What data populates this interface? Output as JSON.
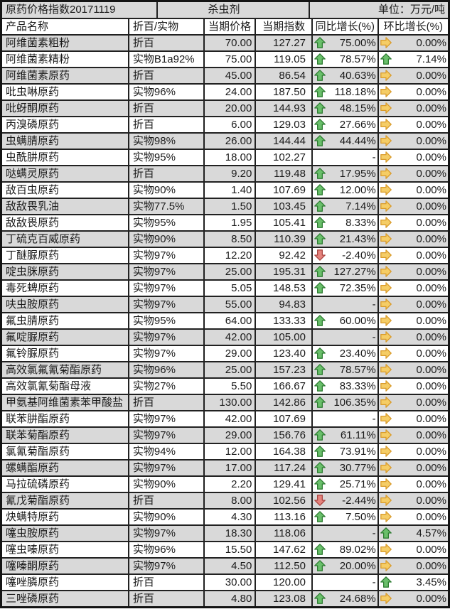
{
  "title": {
    "left": "原药价格指数20171119",
    "center": "杀虫剂",
    "right": "单位：万元/吨"
  },
  "columns": [
    "产品名称",
    "折百/实物",
    "当期价格",
    "当期指数",
    "同比增长(%)",
    "环比增长(%)"
  ],
  "colors": {
    "gray_row": "#d9d9d9",
    "border": "#212121",
    "up_fill": "#6abf6b",
    "up_stroke": "#2f7d33",
    "down_fill": "#e5837d",
    "down_stroke": "#ab4642",
    "right_fill": "#f5cd66",
    "right_stroke": "#d99b2b"
  },
  "rows": [
    {
      "name": "阿维菌素粗粉",
      "spec": "折百",
      "price": "70.00",
      "index": "127.27",
      "yoy_dir": "up",
      "yoy": "75.00%",
      "mom_dir": "right",
      "mom": "0.00%"
    },
    {
      "name": "阿维菌素精粉",
      "spec": "实物B1a92%",
      "price": "75.00",
      "index": "119.05",
      "yoy_dir": "up",
      "yoy": "78.57%",
      "mom_dir": "up",
      "mom": "7.14%"
    },
    {
      "name": "阿维菌素原药",
      "spec": "折百",
      "price": "45.00",
      "index": "86.54",
      "yoy_dir": "up",
      "yoy": "40.63%",
      "mom_dir": "right",
      "mom": "0.00%"
    },
    {
      "name": "吡虫啉原药",
      "spec": "实物96%",
      "price": "24.00",
      "index": "187.50",
      "yoy_dir": "up",
      "yoy": "118.18%",
      "mom_dir": "right",
      "mom": "0.00%"
    },
    {
      "name": "吡蚜酮原药",
      "spec": "折百",
      "price": "20.00",
      "index": "144.93",
      "yoy_dir": "up",
      "yoy": "48.15%",
      "mom_dir": "right",
      "mom": "0.00%"
    },
    {
      "name": "丙溴磷原药",
      "spec": "折百",
      "price": "6.00",
      "index": "129.03",
      "yoy_dir": "up",
      "yoy": "27.66%",
      "mom_dir": "right",
      "mom": "0.00%"
    },
    {
      "name": "虫螨腈原药",
      "spec": "实物98%",
      "price": "26.00",
      "index": "144.44",
      "yoy_dir": "up",
      "yoy": "44.44%",
      "mom_dir": "right",
      "mom": "0.00%"
    },
    {
      "name": "虫酰肼原药",
      "spec": "实物95%",
      "price": "18.00",
      "index": "102.27",
      "yoy_dir": "none",
      "yoy": "-",
      "mom_dir": "right",
      "mom": "0.00%"
    },
    {
      "name": "哒螨灵原药",
      "spec": "折百",
      "price": "9.20",
      "index": "119.48",
      "yoy_dir": "up",
      "yoy": "17.95%",
      "mom_dir": "right",
      "mom": "0.00%"
    },
    {
      "name": "敌百虫原药",
      "spec": "实物90%",
      "price": "1.40",
      "index": "107.69",
      "yoy_dir": "up",
      "yoy": "12.00%",
      "mom_dir": "right",
      "mom": "0.00%"
    },
    {
      "name": "敌敌畏乳油",
      "spec": "实物77.5%",
      "price": "1.50",
      "index": "103.45",
      "yoy_dir": "up",
      "yoy": "7.14%",
      "mom_dir": "right",
      "mom": "0.00%"
    },
    {
      "name": "敌敌畏原药",
      "spec": "实物95%",
      "price": "1.95",
      "index": "105.41",
      "yoy_dir": "up",
      "yoy": "8.33%",
      "mom_dir": "right",
      "mom": "0.00%"
    },
    {
      "name": "丁硫克百威原药",
      "spec": "实物90%",
      "price": "8.50",
      "index": "110.39",
      "yoy_dir": "up",
      "yoy": "21.43%",
      "mom_dir": "right",
      "mom": "0.00%"
    },
    {
      "name": "丁醚脲原药",
      "spec": "实物97%",
      "price": "12.20",
      "index": "92.42",
      "yoy_dir": "down",
      "yoy": "-2.40%",
      "mom_dir": "right",
      "mom": "0.00%"
    },
    {
      "name": "啶虫脒原药",
      "spec": "实物97%",
      "price": "25.00",
      "index": "195.31",
      "yoy_dir": "up",
      "yoy": "127.27%",
      "mom_dir": "right",
      "mom": "0.00%"
    },
    {
      "name": "毒死蜱原药",
      "spec": "实物97%",
      "price": "5.05",
      "index": "148.53",
      "yoy_dir": "up",
      "yoy": "72.35%",
      "mom_dir": "right",
      "mom": "0.00%"
    },
    {
      "name": "呋虫胺原药",
      "spec": "实物97%",
      "price": "55.00",
      "index": "94.83",
      "yoy_dir": "none",
      "yoy": "-",
      "mom_dir": "right",
      "mom": "0.00%"
    },
    {
      "name": "氟虫腈原药",
      "spec": "实物95%",
      "price": "64.00",
      "index": "133.33",
      "yoy_dir": "up",
      "yoy": "60.00%",
      "mom_dir": "right",
      "mom": "0.00%"
    },
    {
      "name": "氟啶脲原药",
      "spec": "实物97%",
      "price": "42.00",
      "index": "105.00",
      "yoy_dir": "none",
      "yoy": "-",
      "mom_dir": "right",
      "mom": "0.00%"
    },
    {
      "name": "氟铃脲原药",
      "spec": "实物97%",
      "price": "29.00",
      "index": "123.40",
      "yoy_dir": "up",
      "yoy": "23.40%",
      "mom_dir": "right",
      "mom": "0.00%"
    },
    {
      "name": "高效氯氟氰菊酯原药",
      "spec": "实物96%",
      "price": "25.00",
      "index": "157.23",
      "yoy_dir": "up",
      "yoy": "78.57%",
      "mom_dir": "right",
      "mom": "0.00%"
    },
    {
      "name": "高效氯氰菊酯母液",
      "spec": "实物27%",
      "price": "5.50",
      "index": "166.67",
      "yoy_dir": "up",
      "yoy": "83.33%",
      "mom_dir": "right",
      "mom": "0.00%"
    },
    {
      "name": "甲氨基阿维菌素苯甲酸盐",
      "spec": "折百",
      "price": "130.00",
      "index": "142.86",
      "yoy_dir": "up",
      "yoy": "106.35%",
      "mom_dir": "right",
      "mom": "0.00%"
    },
    {
      "name": "联苯肼酯原药",
      "spec": "实物97%",
      "price": "42.00",
      "index": "107.69",
      "yoy_dir": "none",
      "yoy": "-",
      "mom_dir": "right",
      "mom": "0.00%"
    },
    {
      "name": "联苯菊酯原药",
      "spec": "实物97%",
      "price": "29.00",
      "index": "156.76",
      "yoy_dir": "up",
      "yoy": "61.11%",
      "mom_dir": "right",
      "mom": "0.00%"
    },
    {
      "name": "氯氰菊酯原药",
      "spec": "实物94%",
      "price": "12.00",
      "index": "164.38",
      "yoy_dir": "up",
      "yoy": "73.91%",
      "mom_dir": "right",
      "mom": "0.00%"
    },
    {
      "name": "螺螨酯原药",
      "spec": "实物97%",
      "price": "17.00",
      "index": "117.24",
      "yoy_dir": "up",
      "yoy": "30.77%",
      "mom_dir": "right",
      "mom": "0.00%"
    },
    {
      "name": "马拉硫磷原药",
      "spec": "实物90%",
      "price": "2.20",
      "index": "129.41",
      "yoy_dir": "up",
      "yoy": "25.71%",
      "mom_dir": "right",
      "mom": "0.00%"
    },
    {
      "name": "氰戊菊酯原药",
      "spec": "折百",
      "price": "8.00",
      "index": "102.56",
      "yoy_dir": "down",
      "yoy": "-2.44%",
      "mom_dir": "right",
      "mom": "0.00%"
    },
    {
      "name": "炔螨特原药",
      "spec": "实物90%",
      "price": "4.30",
      "index": "113.16",
      "yoy_dir": "up",
      "yoy": "7.50%",
      "mom_dir": "right",
      "mom": "0.00%"
    },
    {
      "name": "噻虫胺原药",
      "spec": "实物97%",
      "price": "18.30",
      "index": "118.06",
      "yoy_dir": "none",
      "yoy": "-",
      "mom_dir": "up",
      "mom": "4.57%"
    },
    {
      "name": "噻虫嗪原药",
      "spec": "实物96%",
      "price": "15.50",
      "index": "147.62",
      "yoy_dir": "up",
      "yoy": "89.02%",
      "mom_dir": "right",
      "mom": "0.00%"
    },
    {
      "name": "噻嗪酮原药",
      "spec": "实物97%",
      "price": "4.50",
      "index": "112.50",
      "yoy_dir": "up",
      "yoy": "20.00%",
      "mom_dir": "right",
      "mom": "0.00%"
    },
    {
      "name": "噻唑膦原药",
      "spec": "折百",
      "price": "30.00",
      "index": "120.00",
      "yoy_dir": "none",
      "yoy": "-",
      "mom_dir": "up",
      "mom": "3.45%"
    },
    {
      "name": "三唑磷原药",
      "spec": "折百",
      "price": "4.80",
      "index": "123.08",
      "yoy_dir": "up",
      "yoy": "24.68%",
      "mom_dir": "right",
      "mom": "0.00%"
    }
  ]
}
